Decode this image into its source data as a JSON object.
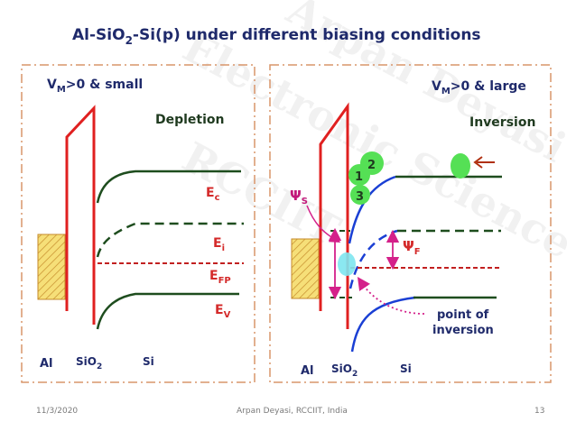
{
  "slide": {
    "title_main": "Al-SiO",
    "title_sub": "2",
    "title_tail": "-Si(p) under different biasing conditions",
    "footer_date": "11/3/2020",
    "footer_author": "Arpan Deyasi, RCCIIT, India",
    "footer_page": "13",
    "watermark_line1": "Arpan Deyasi",
    "watermark_line2": "Electronic Science",
    "watermark_line3": "RCCIIT"
  },
  "left_panel": {
    "vm_label": "V",
    "vm_sub": "M",
    "vm_tail": ">0 & small",
    "mode": "Depletion",
    "ec": "E",
    "ec_sub": "c",
    "ei": "E",
    "ei_sub": "i",
    "efp": "E",
    "efp_sub": "FP",
    "ev": "E",
    "ev_sub": "V",
    "al": "Al",
    "sio2": "SiO",
    "sio2_sub": "2",
    "si": "Si"
  },
  "right_panel": {
    "vm_label": "V",
    "vm_sub": "M",
    "vm_tail": ">0 & large",
    "mode": "Inversion",
    "psi_s": "Ψ",
    "psi_s_sub": "S",
    "psi_f": "Ψ",
    "psi_f_sub": "F",
    "n1": "1",
    "n2": "2",
    "n3": "3",
    "poi_line1": "point of",
    "poi_line2": "inversion",
    "al": "Al",
    "sio2": "SiO",
    "sio2_sub": "2",
    "si": "Si"
  },
  "colors": {
    "band": "#1e4d1e",
    "oxide": "#e02020",
    "fermi": "#c22020",
    "bent": "#1a3fd4",
    "frame": "#d9956a",
    "metal_fill": "#f6df78",
    "metal_hatch": "#c48a2a",
    "psi": "#d4208a",
    "electron": "#55e055",
    "hole": "#7ee6f0"
  }
}
